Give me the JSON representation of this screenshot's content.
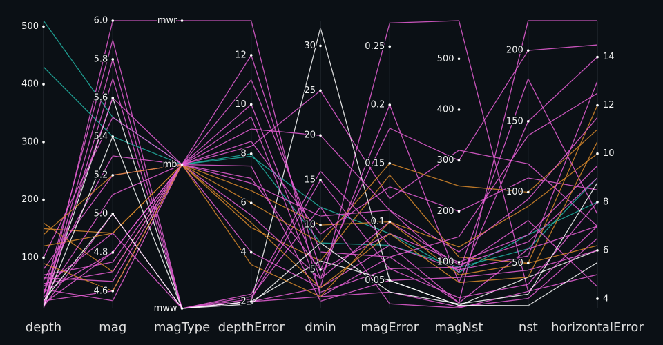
{
  "chart_data": {
    "type": "parcoords",
    "dimensions": [
      {
        "label": "depth",
        "range": [
          12,
          510
        ],
        "ticks": [
          100,
          200,
          300,
          400,
          500
        ],
        "values": [
          510,
          430,
          12,
          35,
          20,
          60,
          150,
          160,
          25,
          15,
          40,
          80,
          18,
          120,
          30,
          55,
          12,
          45,
          100,
          25,
          65,
          140,
          20,
          35,
          50,
          70,
          15,
          90
        ]
      },
      {
        "label": "mag",
        "range": [
          4.51,
          6.0
        ],
        "ticks": [
          4.6,
          4.8,
          {
            "value": 5,
            "label": "5.0"
          },
          5.2,
          5.4,
          5.6,
          5.8,
          {
            "value": 6,
            "label": "6.0"
          }
        ],
        "values": [
          5.5,
          5.4,
          6.0,
          5.9,
          5.6,
          5.3,
          4.9,
          4.7,
          4.6,
          5.0,
          4.8,
          5.2,
          5.8,
          4.9,
          5.1,
          4.7,
          5.7,
          4.55,
          5.5,
          5.0,
          4.65,
          5.2,
          4.8,
          5.6,
          4.9,
          4.75,
          5.4,
          4.6
        ]
      },
      {
        "label": "magType",
        "categories": [
          "mww",
          "mb",
          "mwr"
        ],
        "values": [
          "mb",
          "mb",
          "mwr",
          "mww",
          "mww",
          "mb",
          "mb",
          "mb",
          "mb",
          "mww",
          "mb",
          "mb",
          "mww",
          "mb",
          "mb",
          "mb",
          "mww",
          "mb",
          "mb",
          "mww",
          "mb",
          "mb",
          "mb",
          "mb",
          "mww",
          "mb",
          "mww",
          "mb"
        ]
      },
      {
        "label": "depthError",
        "range": [
          1.72,
          13.4
        ],
        "ticks": [
          2,
          4,
          6,
          8,
          10,
          12
        ],
        "values": [
          7.9,
          8.0,
          13.4,
          2,
          2,
          8.3,
          6.5,
          5,
          10,
          2.1,
          7,
          9,
          2,
          6,
          4,
          7.5,
          2.2,
          5.5,
          11,
          2,
          8.5,
          5.2,
          12,
          9.5,
          2.3,
          6.8,
          1.9,
          3.5
        ]
      },
      {
        "label": "dmin",
        "range": [
          0.69,
          32.8
        ],
        "ticks": [
          5,
          10,
          15,
          20,
          25,
          30
        ],
        "values": [
          12,
          8,
          2,
          3,
          32,
          25,
          10,
          6,
          4,
          15,
          5,
          20,
          2,
          8,
          3,
          1.5,
          12,
          4,
          7,
          6,
          9,
          3,
          5,
          2.5,
          16,
          11,
          8,
          2
        ]
      },
      {
        "label": "magError",
        "range": [
          0.026,
          0.272
        ],
        "ticks": [
          0.05,
          0.1,
          0.15,
          0.2,
          0.25
        ],
        "values": [
          0.09,
          0.08,
          0.07,
          0.27,
          0.05,
          0.12,
          0.1,
          0.14,
          0.2,
          0.06,
          0.09,
          0.11,
          0.04,
          0.15,
          0.08,
          0.05,
          0.03,
          0.1,
          0.07,
          0.05,
          0.13,
          0.09,
          0.18,
          0.06,
          0.08,
          0.11,
          0.04,
          0.1
        ]
      },
      {
        "label": "magNst",
        "range": [
          9,
          575
        ],
        "ticks": [
          100,
          200,
          300,
          400,
          500
        ],
        "values": [
          80,
          90,
          20,
          575,
          15,
          320,
          130,
          110,
          60,
          30,
          100,
          80,
          12,
          250,
          85,
          70,
          10,
          95,
          150,
          15,
          200,
          60,
          300,
          90,
          20,
          120,
          18,
          75
        ]
      },
      {
        "label": "nst",
        "range": [
          18,
          221
        ],
        "ticks": [
          50,
          100,
          150,
          200
        ],
        "values": [
          70,
          60,
          221,
          30,
          40,
          120,
          90,
          50,
          150,
          35,
          70,
          180,
          25,
          100,
          55,
          45,
          30,
          65,
          140,
          20,
          110,
          40,
          200,
          80,
          60,
          95,
          28,
          50
        ]
      },
      {
        "label": "horizontalError",
        "range": [
          3.6,
          15.5
        ],
        "ticks": [
          4,
          6,
          8,
          10,
          12,
          14
        ],
        "values": [
          8,
          9,
          15.5,
          5,
          6,
          7,
          10,
          12,
          14,
          8,
          9.5,
          7.5,
          6.5,
          11,
          13,
          6,
          7,
          9,
          12.5,
          5.5,
          8.5,
          10.5,
          14.5,
          4.5,
          7,
          11.5,
          8.8,
          6.2
        ]
      }
    ],
    "line_colors": [
      "#22b3a3",
      "#22b3a3",
      "#e85fd6",
      "#e85fd6",
      "#ffffff",
      "#e85fd6",
      "#d98a2b",
      "#d98a2b",
      "#e85fd6",
      "#e85fd6",
      "#e85fd6",
      "#e85fd6",
      "#e85fd6",
      "#d98a2b",
      "#e85fd6",
      "#e85fd6",
      "#e85fd6",
      "#e85fd6",
      "#e85fd6",
      "#ffffff",
      "#e85fd6",
      "#d98a2b",
      "#e85fd6",
      "#e85fd6",
      "#e85fd6",
      "#e85fd6",
      "#ffffff",
      "#d98a2b"
    ]
  }
}
